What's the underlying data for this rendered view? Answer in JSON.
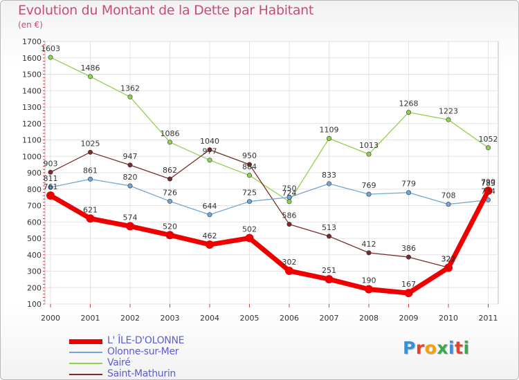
{
  "header": {
    "title": "Evolution du Montant de la Dette par Habitant",
    "subtitle": "(en €)"
  },
  "logo": {
    "text": "Proxiti",
    "colors": [
      "#3a8fd8",
      "#e0452a",
      "#f0a500",
      "#3aa84a",
      "#3a8fd8",
      "#e0452a",
      "#3aa84a"
    ]
  },
  "chart_data": {
    "type": "line",
    "title": "Evolution du Montant de la Dette par Habitant",
    "subtitle": "(en €)",
    "x": [
      "2000",
      "2001",
      "2002",
      "2003",
      "2004",
      "2005",
      "2006",
      "2007",
      "2008",
      "2009",
      "2010",
      "2011"
    ],
    "ylim": [
      100,
      1700
    ],
    "yticks": [
      100,
      200,
      300,
      400,
      500,
      600,
      700,
      800,
      900,
      1000,
      1100,
      1200,
      1300,
      1400,
      1500,
      1600,
      1700
    ],
    "grid": true,
    "legend": "bottom-left",
    "series": [
      {
        "name": "L' ÎLE-D'OLONNE",
        "color": "#ee0000",
        "values": [
          761,
          621,
          574,
          520,
          462,
          502,
          302,
          251,
          190,
          167,
          321,
          790
        ],
        "labels": [
          "761",
          "621",
          "574",
          "520",
          "462",
          "502",
          "302",
          "251",
          "190",
          "167",
          "321",
          "790"
        ]
      },
      {
        "name": "Olonne-sur-Mer",
        "color": "#6fa6d6",
        "values": [
          811,
          861,
          820,
          726,
          644,
          725,
          750,
          833,
          769,
          779,
          708,
          734
        ],
        "labels": [
          "811",
          "861",
          "820",
          "726",
          "644",
          "725",
          "750",
          "833",
          "769",
          "779",
          "708",
          "734"
        ]
      },
      {
        "name": "Vairé",
        "color": "#8fd14f",
        "values": [
          1603,
          1486,
          1362,
          1086,
          977,
          884,
          724,
          1109,
          1013,
          1268,
          1223,
          1052
        ],
        "labels": [
          "1603",
          "1486",
          "1362",
          "1086",
          "977",
          "884",
          "724",
          "1109",
          "1013",
          "1268",
          "1223",
          "1052"
        ]
      },
      {
        "name": "Saint-Mathurin",
        "color": "#7a2a2a",
        "values": [
          903,
          1025,
          947,
          862,
          1040,
          950,
          586,
          513,
          412,
          386,
          322,
          783
        ],
        "labels": [
          "903",
          "1025",
          "947",
          "862",
          "1040",
          "950",
          "586",
          "513",
          "412",
          "386",
          "322",
          "783"
        ]
      }
    ]
  }
}
